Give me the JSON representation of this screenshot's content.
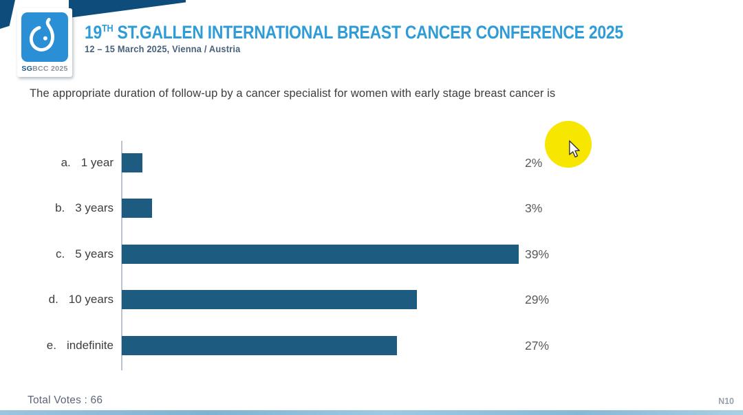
{
  "header": {
    "logo": {
      "brand_bold": "SG",
      "brand_rest": "BCC 2025"
    },
    "title_prefix": "19",
    "title_sup": "TH",
    "title_main": " ST.GALLEN INTERNATIONAL BREAST CANCER CONFERENCE 2025",
    "subtitle": "12 – 15 March 2025, Vienna / Austria"
  },
  "question": "The appropriate duration of follow-up by a cancer specialist for women with early stage breast cancer is",
  "chart_data": {
    "type": "bar",
    "orientation": "horizontal",
    "title": "The appropriate duration of follow-up by a cancer specialist for women with early stage breast cancer is",
    "option_prefixes": [
      "a.",
      "b.",
      "c.",
      "d.",
      "e."
    ],
    "categories": [
      "1 year",
      "3 years",
      "5 years",
      "10 years",
      "indefinite"
    ],
    "values": [
      2,
      3,
      39,
      29,
      27
    ],
    "value_labels": [
      "2%",
      "3%",
      "39%",
      "29%",
      "27%"
    ],
    "unit": "%",
    "xlim": [
      0,
      40
    ],
    "grid": false,
    "legend": "none",
    "bar_color": "#1e5b80",
    "axis_color": "#bcc3ca",
    "total_votes": 66
  },
  "footer": {
    "total_votes_label": "Total Votes : 66",
    "slide_code": "N10"
  },
  "colors": {
    "accent_navy": "#0e4d7b",
    "logo_blue": "#2a8fd4",
    "title_blue": "#2f9cd8",
    "highlight_yellow": "#f7e600"
  }
}
